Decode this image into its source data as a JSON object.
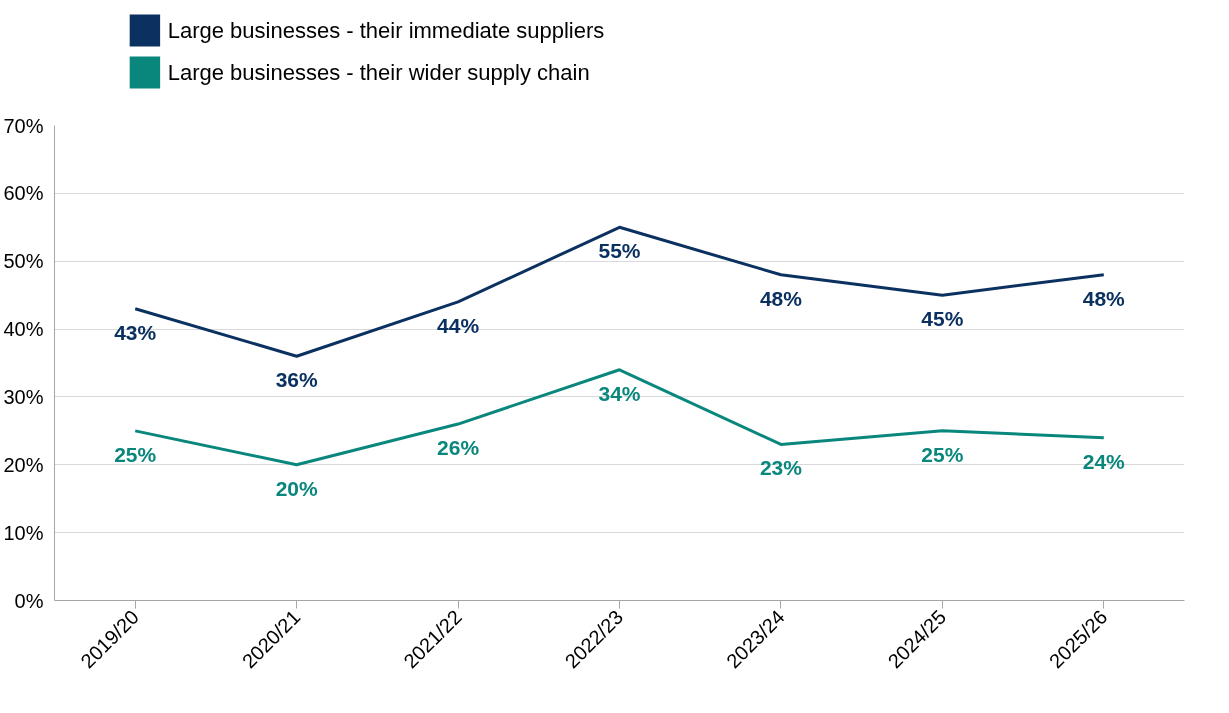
{
  "chart_data": {
    "type": "line",
    "categories": [
      "2019/20",
      "2020/21",
      "2021/22",
      "2022/23",
      "2023/24",
      "2024/25",
      "2025/26"
    ],
    "series": [
      {
        "name": "Large businesses - their immediate suppliers",
        "color": "#0b3161",
        "values": [
          43,
          36,
          44,
          55,
          48,
          45,
          48
        ],
        "value_labels": [
          "43%",
          "36%",
          "44%",
          "55%",
          "48%",
          "45%",
          "48%"
        ]
      },
      {
        "name": "Large businesses - their wider supply chain",
        "color": "#0a877d",
        "values": [
          25,
          20,
          26,
          34,
          23,
          25,
          24
        ],
        "value_labels": [
          "25%",
          "20%",
          "26%",
          "34%",
          "23%",
          "25%",
          "24%"
        ]
      }
    ],
    "ylim": [
      0,
      70
    ],
    "yticks": [
      {
        "value": 0,
        "label": "0%"
      },
      {
        "value": 10,
        "label": "10%"
      },
      {
        "value": 20,
        "label": "20%"
      },
      {
        "value": 30,
        "label": "30%"
      },
      {
        "value": 40,
        "label": "40%"
      },
      {
        "value": 50,
        "label": "50%"
      },
      {
        "value": 60,
        "label": "60%"
      },
      {
        "value": 70,
        "label": "70%"
      }
    ],
    "grid": "y",
    "legend": "top left",
    "marker": "none",
    "line_style": "solid"
  }
}
